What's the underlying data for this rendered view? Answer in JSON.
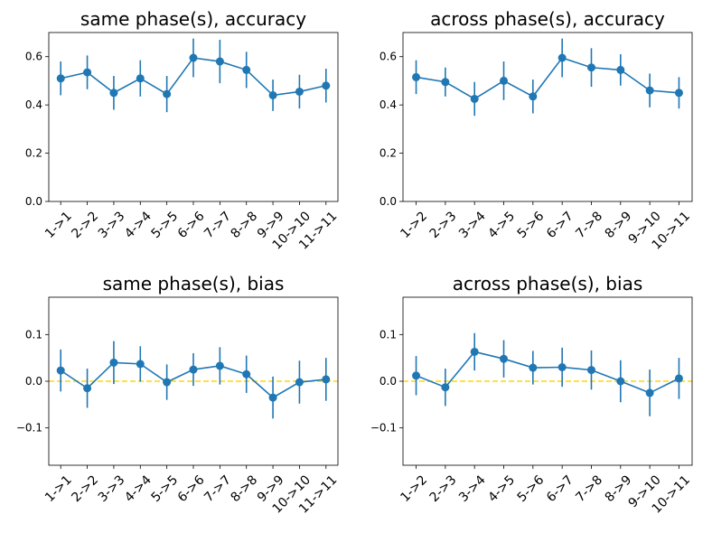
{
  "chart_data": [
    {
      "type": "line",
      "title": "same phase(s), accuracy",
      "categories": [
        "1->1",
        "2->2",
        "3->3",
        "4->4",
        "5->5",
        "6->6",
        "7->7",
        "8->8",
        "9->9",
        "10->10",
        "11->11"
      ],
      "values": [
        0.51,
        0.535,
        0.45,
        0.51,
        0.445,
        0.595,
        0.58,
        0.545,
        0.44,
        0.455,
        0.48
      ],
      "errors": [
        0.07,
        0.07,
        0.07,
        0.075,
        0.075,
        0.08,
        0.09,
        0.075,
        0.065,
        0.07,
        0.07
      ],
      "ylim": [
        0,
        0.7
      ],
      "yticks": [
        "0.0",
        "0.2",
        "0.4",
        "0.6"
      ],
      "ytick_values": [
        0,
        0.2,
        0.4,
        0.6
      ],
      "color": "#1f77b4"
    },
    {
      "type": "line",
      "title": "across phase(s), accuracy",
      "categories": [
        "1->2",
        "2->3",
        "3->4",
        "4->5",
        "5->6",
        "6->7",
        "7->8",
        "8->9",
        "9->10",
        "10->11"
      ],
      "values": [
        0.515,
        0.495,
        0.425,
        0.5,
        0.435,
        0.595,
        0.555,
        0.545,
        0.46,
        0.45
      ],
      "errors": [
        0.07,
        0.06,
        0.07,
        0.08,
        0.07,
        0.08,
        0.08,
        0.065,
        0.07,
        0.065
      ],
      "ylim": [
        0,
        0.7
      ],
      "yticks": [
        "0.0",
        "0.2",
        "0.4",
        "0.6"
      ],
      "ytick_values": [
        0,
        0.2,
        0.4,
        0.6
      ],
      "color": "#1f77b4"
    },
    {
      "type": "line",
      "title": "same phase(s), bias",
      "categories": [
        "1->1",
        "2->2",
        "3->3",
        "4->4",
        "5->5",
        "6->6",
        "7->7",
        "8->8",
        "9->9",
        "10->10",
        "11->11"
      ],
      "values": [
        0.023,
        -0.015,
        0.04,
        0.037,
        -0.002,
        0.025,
        0.033,
        0.015,
        -0.035,
        -0.002,
        0.004
      ],
      "errors": [
        0.045,
        0.042,
        0.046,
        0.038,
        0.038,
        0.035,
        0.04,
        0.04,
        0.045,
        0.046,
        0.046
      ],
      "ylim": [
        -0.18,
        0.18
      ],
      "yticks": [
        "−0.1",
        "0.0",
        "0.1"
      ],
      "ytick_values": [
        -0.1,
        0,
        0.1
      ],
      "reference_line": 0,
      "reference_color": "#ffd700",
      "color": "#1f77b4"
    },
    {
      "type": "line",
      "title": "across phase(s), bias",
      "categories": [
        "1->2",
        "2->3",
        "3->4",
        "4->5",
        "5->6",
        "6->7",
        "7->8",
        "8->9",
        "9->10",
        "10->11"
      ],
      "values": [
        0.012,
        -0.013,
        0.063,
        0.048,
        0.029,
        0.03,
        0.024,
        0.0,
        -0.025,
        0.006
      ],
      "errors": [
        0.042,
        0.04,
        0.04,
        0.04,
        0.036,
        0.042,
        0.042,
        0.045,
        0.05,
        0.044
      ],
      "ylim": [
        -0.18,
        0.18
      ],
      "yticks": [
        "−0.1",
        "0.0",
        "0.1"
      ],
      "ytick_values": [
        -0.1,
        0,
        0.1
      ],
      "reference_line": 0,
      "reference_color": "#ffd700",
      "color": "#1f77b4"
    }
  ]
}
